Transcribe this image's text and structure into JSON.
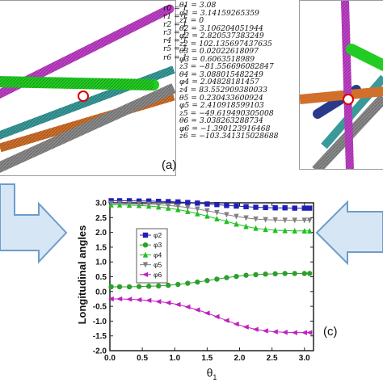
{
  "figure": {
    "panel_a_label": "(a)",
    "panel_c_label": "(c)",
    "r_list": [
      "r0 = 1",
      "r1 = 1",
      "r2 = 1",
      "r3 = 1",
      "r4 = 1",
      "r5 = 1",
      "r6 = 1"
    ],
    "params": [
      "θ1 = 3.08",
      "φ1 = 3.14159265359",
      "z1 = 0",
      "θ2 = 3.106204051944",
      "φ2 = 2.820537383249",
      "z2 = 102.135697437635",
      "θ3 = 0.02022618097",
      "φ3 = 0.6063518989",
      "z3 = −81.556696082847",
      "θ4 = 3.088015482249",
      "φ4 = 2.04828181457",
      "z4 = 83.552909380033",
      "θ5 = 0.230433600924",
      "φ5 = 2.410918599103",
      "z5 = −49.619490305008",
      "θ6 = 3.038263288734",
      "φ6 = −1.390123916468",
      "z6 = −103.341315028688"
    ],
    "colors": {
      "arrow_fill": "#d7e6f5",
      "arrow_stroke": "#6e9ccc",
      "s2": "#1f1fb4",
      "s3": "#2ca02c",
      "s4": "#1ec01e",
      "s5": "#808080",
      "s6": "#c020c0"
    }
  },
  "chart_data": {
    "type": "line",
    "ylabel": "Longitudinal angles",
    "xlabel": "θ1",
    "xlim": [
      0,
      3.14
    ],
    "ylim": [
      -2.0,
      3.0
    ],
    "xticks": [
      "0.0",
      "0.5",
      "1.0",
      "1.5",
      "2.0",
      "2.5",
      "3.0"
    ],
    "yticks": [
      "-2.0",
      "-1.5",
      "-1.0",
      "-0.5",
      "0.0",
      "0.5",
      "1.0",
      "1.5",
      "2.0",
      "2.5",
      "3.0"
    ],
    "legend_position": "upper-left",
    "x": [
      0.02,
      0.15,
      0.3,
      0.45,
      0.6,
      0.75,
      0.9,
      1.05,
      1.2,
      1.35,
      1.5,
      1.65,
      1.8,
      1.95,
      2.1,
      2.25,
      2.4,
      2.55,
      2.7,
      2.85,
      3.0,
      3.08
    ],
    "series": [
      {
        "name": "φ2",
        "marker": "square",
        "color": "#1f1fb4",
        "values": [
          3.07,
          3.07,
          3.07,
          3.06,
          3.06,
          3.05,
          3.04,
          3.03,
          3.01,
          2.99,
          2.96,
          2.94,
          2.91,
          2.89,
          2.87,
          2.85,
          2.84,
          2.83,
          2.83,
          2.82,
          2.82,
          2.82
        ]
      },
      {
        "name": "φ3",
        "marker": "circle",
        "color": "#2ca02c",
        "values": [
          0.16,
          0.16,
          0.16,
          0.17,
          0.18,
          0.19,
          0.21,
          0.24,
          0.28,
          0.32,
          0.37,
          0.42,
          0.47,
          0.51,
          0.55,
          0.57,
          0.59,
          0.6,
          0.61,
          0.61,
          0.61,
          0.61
        ]
      },
      {
        "name": "φ4",
        "marker": "triangle-up",
        "color": "#1ec01e",
        "values": [
          2.93,
          2.93,
          2.92,
          2.91,
          2.89,
          2.86,
          2.82,
          2.77,
          2.71,
          2.63,
          2.55,
          2.46,
          2.37,
          2.28,
          2.2,
          2.14,
          2.1,
          2.07,
          2.06,
          2.05,
          2.05,
          2.05
        ]
      },
      {
        "name": "φ5",
        "marker": "triangle-down",
        "color": "#808080",
        "values": [
          2.98,
          2.98,
          2.97,
          2.96,
          2.95,
          2.93,
          2.91,
          2.88,
          2.84,
          2.79,
          2.73,
          2.67,
          2.6,
          2.54,
          2.49,
          2.45,
          2.43,
          2.42,
          2.41,
          2.41,
          2.41,
          2.41
        ]
      },
      {
        "name": "φ6",
        "marker": "triangle-left",
        "color": "#c020c0",
        "values": [
          -0.25,
          -0.25,
          -0.26,
          -0.28,
          -0.3,
          -0.34,
          -0.38,
          -0.44,
          -0.52,
          -0.62,
          -0.73,
          -0.85,
          -0.98,
          -1.1,
          -1.2,
          -1.28,
          -1.33,
          -1.36,
          -1.38,
          -1.39,
          -1.39,
          -1.39
        ]
      }
    ]
  }
}
